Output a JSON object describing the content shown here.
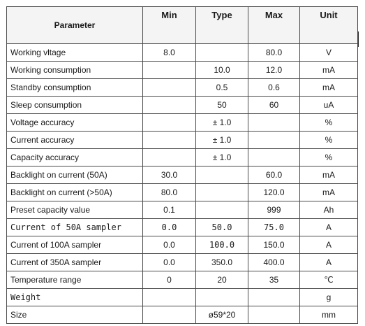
{
  "table": {
    "headers": {
      "parameter": "Parameter",
      "min": "Min",
      "type": "Type",
      "max": "Max",
      "unit": "Unit"
    },
    "rows": [
      {
        "parameter": "Working vltage",
        "min": "8.0",
        "type": "",
        "max": "80.0",
        "unit": "V"
      },
      {
        "parameter": "Working consumption",
        "min": "",
        "type": "10.0",
        "max": "12.0",
        "unit": "mA"
      },
      {
        "parameter": "Standby consumption",
        "min": "",
        "type": "0.5",
        "max": "0.6",
        "unit": "mA"
      },
      {
        "parameter": "Sleep consumption",
        "min": "",
        "type": "50",
        "max": "60",
        "unit": "uA"
      },
      {
        "parameter": "Voltage accuracy",
        "min": "",
        "type": "± 1.0",
        "max": "",
        "unit": "%"
      },
      {
        "parameter": "Current accuracy",
        "min": "",
        "type": "± 1.0",
        "max": "",
        "unit": "%"
      },
      {
        "parameter": "Capacity accuracy",
        "min": "",
        "type": "± 1.0",
        "max": "",
        "unit": "%"
      },
      {
        "parameter": "Backlight on current (50A)",
        "min": "30.0",
        "type": "",
        "max": "60.0",
        "unit": "mA"
      },
      {
        "parameter": "Backlight on current (>50A)",
        "min": "80.0",
        "type": "",
        "max": "120.0",
        "unit": "mA"
      },
      {
        "parameter": "Preset capacity value",
        "min": "0.1",
        "type": "",
        "max": "999",
        "unit": "Ah"
      },
      {
        "parameter": "Current of 50A sampler",
        "min": "0.0",
        "type": "50.0",
        "max": "75.0",
        "unit": "A"
      },
      {
        "parameter": "Current of 100A sampler",
        "min": "0.0",
        "type": "100.0",
        "max": "150.0",
        "unit": "A"
      },
      {
        "parameter": "Current of 350A sampler",
        "min": "0.0",
        "type": "350.0",
        "max": "400.0",
        "unit": "A"
      },
      {
        "parameter": "Temperature range",
        "min": "0",
        "type": "20",
        "max": "35",
        "unit": "℃"
      },
      {
        "parameter": "Weight",
        "min": "",
        "type": "",
        "max": "",
        "unit": "g"
      },
      {
        "parameter": "Size",
        "min": "",
        "type": "ø59*20",
        "max": "",
        "unit": "mm"
      }
    ]
  }
}
